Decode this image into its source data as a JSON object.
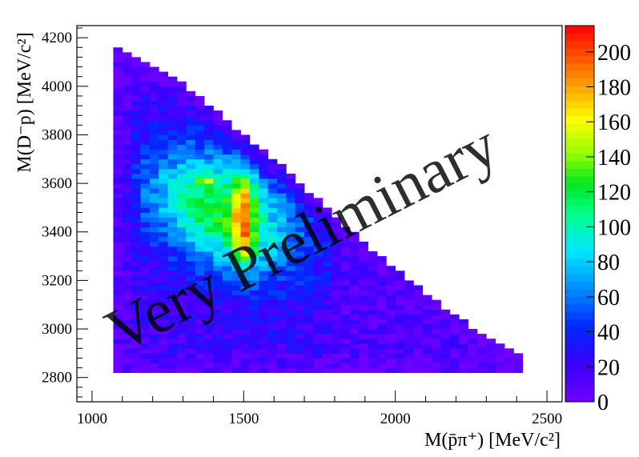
{
  "chart_data": {
    "type": "heatmap",
    "title": "",
    "xlabel": "M(p̄π⁺) [MeV/c²]",
    "ylabel": "M(D⁻p) [MeV/c²]",
    "xlim": [
      950,
      2550
    ],
    "ylim": [
      2700,
      4250
    ],
    "x_ticks": [
      "1000",
      "1500",
      "2000",
      "2500"
    ],
    "x_tick_values": [
      1000,
      1500,
      2000,
      2500
    ],
    "y_ticks": [
      "2800",
      "3000",
      "3200",
      "3400",
      "3600",
      "3800",
      "4000",
      "4200"
    ],
    "y_tick_values": [
      2800,
      3000,
      3200,
      3400,
      3600,
      3800,
      4000,
      4200
    ],
    "x_bin_start": 1070,
    "x_bin_width": 30,
    "y_bin_start": 2820,
    "y_bin_width": 20,
    "n_x_bins": 45,
    "n_y_bins": 70,
    "colorbar": {
      "min": 0,
      "max": 215,
      "ticks": [
        "0",
        "20",
        "40",
        "60",
        "80",
        "100",
        "120",
        "140",
        "160",
        "180",
        "200"
      ],
      "tick_values": [
        0,
        20,
        40,
        60,
        80,
        100,
        120,
        140,
        160,
        180,
        200
      ]
    },
    "density_model": {
      "description": "Dalitz-plot density reconstructed from image",
      "boundary_top_y_at_x": [
        [
          1070,
          4170
        ],
        [
          1300,
          4010
        ],
        [
          1600,
          3700
        ],
        [
          1900,
          3350
        ],
        [
          2200,
          3050
        ],
        [
          2430,
          2880
        ]
      ],
      "peak_band": {
        "x": [
          1460,
          1530
        ],
        "y": [
          3250,
          3660
        ],
        "max": 200
      },
      "hotspot": {
        "x": 1370,
        "y": 3610,
        "value": 185
      }
    },
    "watermark": "Very Preliminary"
  }
}
